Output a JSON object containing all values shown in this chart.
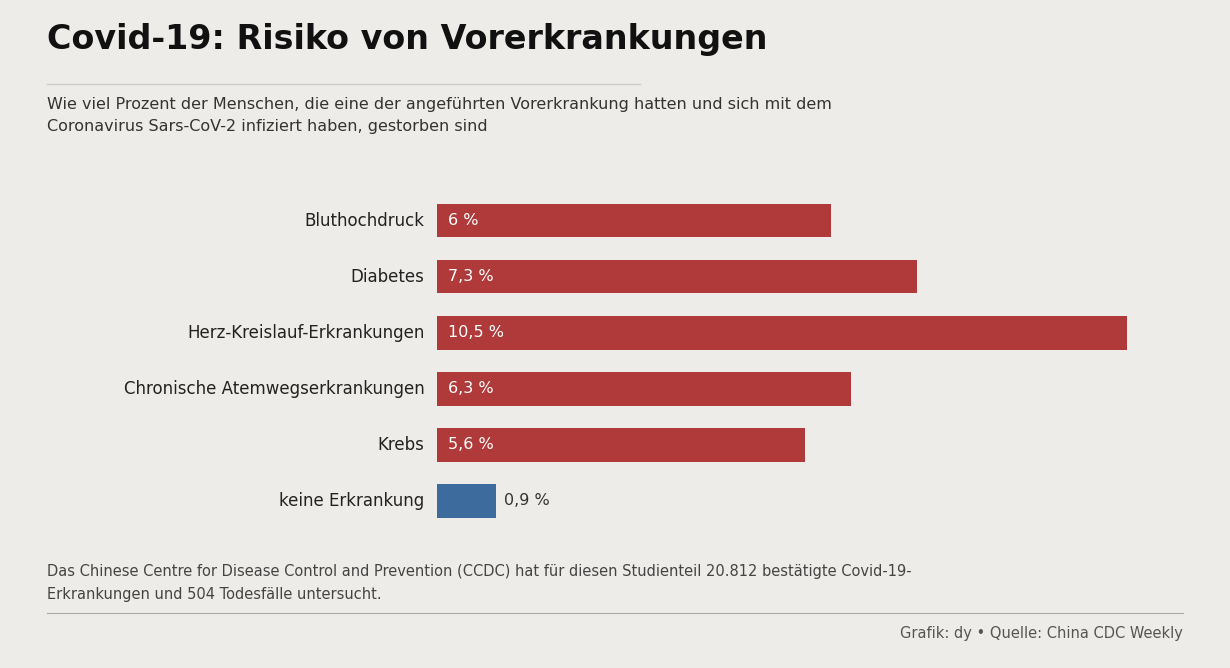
{
  "title": "Covid-19: Risiko von Vorerkrankungen",
  "subtitle_line1": "Wie viel Prozent der Menschen, die eine der angeführten Vorerkrankung hatten und sich mit dem",
  "subtitle_line2": "Coronavirus Sars-CoV-2 infiziert haben, gestorben sind",
  "categories": [
    "Bluthochdruck",
    "Diabetes",
    "Herz-Kreislauf-Erkrankungen",
    "Chronische Atemwegserkrankungen",
    "Krebs",
    "keine Erkrankung"
  ],
  "values": [
    6.0,
    7.3,
    10.5,
    6.3,
    5.6,
    0.9
  ],
  "labels": [
    "6 %",
    "7,3 %",
    "10,5 %",
    "6,3 %",
    "5,6 %",
    "0,9 %"
  ],
  "bar_colors": [
    "#b03a3a",
    "#b03a3a",
    "#b03a3a",
    "#b03a3a",
    "#b03a3a",
    "#3d6b9e"
  ],
  "background_color": "#eeece8",
  "bar_text_color": "#ffffff",
  "last_bar_text_color": "#333333",
  "footnote": "Das Chinese Centre for Disease Control and Prevention (CCDC) hat für diesen Studienteil 20.812 bestätigte Covid-19-\nErkrankungen und 504 Todesfälle untersucht.",
  "source_text": "Grafik: dy • Quelle: China CDC Weekly",
  "title_fontsize": 24,
  "subtitle_fontsize": 11.5,
  "category_fontsize": 12,
  "label_fontsize": 11.5,
  "footnote_fontsize": 10.5,
  "source_fontsize": 10.5,
  "xlim_max": 11.5
}
